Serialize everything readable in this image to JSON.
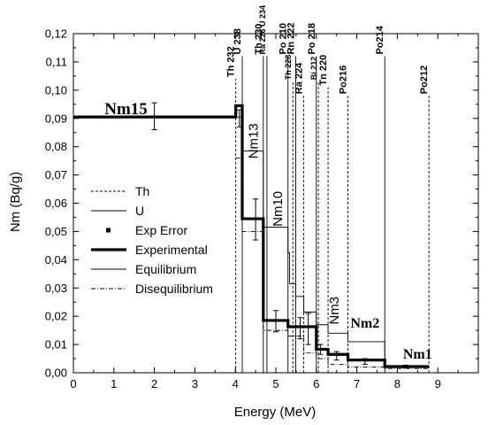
{
  "chart_data": {
    "type": "line",
    "xlabel": "Energy (MeV)",
    "ylabel": "Nm (Bq/g)",
    "xlim": [
      0,
      10
    ],
    "ylim": [
      0,
      0.12
    ],
    "x_ticks": [
      0,
      1,
      2,
      3,
      4,
      5,
      6,
      7,
      8,
      9
    ],
    "y_ticks": [
      0.0,
      0.01,
      0.02,
      0.03,
      0.04,
      0.05,
      0.06,
      0.07,
      0.08,
      0.09,
      0.1,
      0.11,
      0.12
    ],
    "y_tick_labels": [
      "0,00",
      "0,01",
      "0,02",
      "0,03",
      "0,04",
      "0,05",
      "0,06",
      "0,07",
      "0,08",
      "0,09",
      "0,10",
      "0,11",
      "0,12"
    ],
    "legend": [
      {
        "label": "Th",
        "style": "dashed"
      },
      {
        "label": "U",
        "style": "solid-thin"
      },
      {
        "label": "Exp Error",
        "style": "marker"
      },
      {
        "label": "Experimental",
        "style": "solid-thick"
      },
      {
        "label": "Equilibrium",
        "style": "solid-thin"
      },
      {
        "label": "Disequilibrium",
        "style": "dash-dot"
      }
    ],
    "series": [
      {
        "name": "Experimental",
        "step_x": [
          0,
          4.01,
          4.01,
          4.17,
          4.17,
          4.69,
          4.69,
          5.3,
          5.3,
          6.0,
          6.0,
          6.29,
          6.29,
          6.78,
          6.78,
          7.69,
          7.69,
          8.78
        ],
        "step_y": [
          0.0905,
          0.0905,
          0.0945,
          0.0945,
          0.0545,
          0.0545,
          0.0185,
          0.0185,
          0.0163,
          0.0163,
          0.0083,
          0.0083,
          0.0065,
          0.0065,
          0.0045,
          0.0045,
          0.0022,
          0.0022
        ]
      },
      {
        "name": "Equilibrium",
        "step_x": [
          4.01,
          4.17,
          4.17,
          4.69,
          4.69,
          5.3,
          5.3,
          5.34,
          5.34,
          5.49,
          5.49,
          5.69,
          5.69,
          6.0,
          6.0,
          6.29,
          6.29,
          6.78,
          6.78,
          7.69,
          7.69,
          8.78
        ],
        "step_y": [
          0.0905,
          0.0905,
          0.0785,
          0.0785,
          0.0515,
          0.0515,
          0.0425,
          0.0425,
          0.0315,
          0.0315,
          0.027,
          0.027,
          0.0215,
          0.0215,
          0.017,
          0.017,
          0.014,
          0.014,
          0.011,
          0.011,
          0.0022,
          0.0022
        ]
      },
      {
        "name": "Disequilibrium",
        "step_x": [
          4.01,
          4.17,
          4.17,
          4.69,
          4.69,
          5.3,
          5.3,
          5.69,
          5.69,
          6.0,
          6.0,
          6.29,
          6.29,
          6.78,
          6.78,
          7.69,
          7.69,
          8.78
        ],
        "step_y": [
          0.076,
          0.076,
          0.05,
          0.05,
          0.015,
          0.015,
          0.013,
          0.013,
          0.007,
          0.007,
          0.005,
          0.005,
          0.003,
          0.003,
          0.002,
          0.002,
          0.0015,
          0.0015
        ]
      }
    ],
    "error_bars": [
      {
        "x": 2.0,
        "y": 0.0905,
        "lo": 0.086,
        "hi": 0.0955
      },
      {
        "x": 4.1,
        "y": 0.09,
        "lo": 0.087,
        "hi": 0.093
      },
      {
        "x": 4.5,
        "y": 0.0535,
        "lo": 0.047,
        "hi": 0.0615
      },
      {
        "x": 5.0,
        "y": 0.0175,
        "lo": 0.0145,
        "hi": 0.022
      },
      {
        "x": 5.6,
        "y": 0.016,
        "lo": 0.012,
        "hi": 0.0195
      },
      {
        "x": 5.8,
        "y": 0.015,
        "lo": 0.01,
        "hi": 0.021
      },
      {
        "x": 6.1,
        "y": 0.008,
        "lo": 0.0065,
        "hi": 0.01
      },
      {
        "x": 6.5,
        "y": 0.006,
        "lo": 0.0045,
        "hi": 0.0075
      },
      {
        "x": 7.2,
        "y": 0.004,
        "lo": 0.003,
        "hi": 0.005
      },
      {
        "x": 8.2,
        "y": 0.0022,
        "lo": 0.0017,
        "hi": 0.0027
      }
    ],
    "isotope_lines": [
      {
        "label": "Th 232",
        "x": 4.01,
        "y_top": 0.104,
        "style": "dashed",
        "small": false
      },
      {
        "label": "U 238",
        "x": 4.17,
        "y_top": 0.112,
        "style": "solid",
        "small": false
      },
      {
        "label": "Th 230",
        "x": 4.69,
        "y_top": 0.112,
        "style": "solid",
        "small": false
      },
      {
        "label": "Ra 226 U 234",
        "x": 4.78,
        "y_top": 0.112,
        "style": "solid",
        "small": true
      },
      {
        "label": "Po 210",
        "x": 5.3,
        "y_top": 0.112,
        "style": "solid",
        "small": false
      },
      {
        "label": "Th 228",
        "x": 5.42,
        "y_top": 0.103,
        "style": "dashed",
        "small": true
      },
      {
        "label": "Rn 222",
        "x": 5.49,
        "y_top": 0.112,
        "style": "solid",
        "small": false
      },
      {
        "label": "Ra 224",
        "x": 5.69,
        "y_top": 0.098,
        "style": "dashed",
        "small": false
      },
      {
        "label": "Bi 212",
        "x": 6.05,
        "y_top": 0.103,
        "style": "dashed",
        "small": true
      },
      {
        "label": "Po 218",
        "x": 6.0,
        "y_top": 0.112,
        "style": "solid",
        "small": false
      },
      {
        "label": "Tn 220",
        "x": 6.29,
        "y_top": 0.101,
        "style": "dashed",
        "small": false
      },
      {
        "label": "Po216",
        "x": 6.78,
        "y_top": 0.098,
        "style": "dashed",
        "small": false
      },
      {
        "label": "Po214",
        "x": 7.69,
        "y_top": 0.112,
        "style": "solid",
        "small": false
      },
      {
        "label": "Po212",
        "x": 8.78,
        "y_top": 0.098,
        "style": "dashed",
        "small": false
      }
    ],
    "annotations": [
      {
        "text": "Nm15",
        "x": 1.3,
        "y": 0.0915,
        "style": "big"
      },
      {
        "text": "Nm13",
        "x": 4.55,
        "y": 0.082,
        "style": "plain-vertical"
      },
      {
        "text": "Nm10",
        "x": 5.15,
        "y": 0.058,
        "style": "plain-vertical"
      },
      {
        "text": "Nm3",
        "x": 6.55,
        "y": 0.022,
        "style": "plain-vertical"
      },
      {
        "text": "Nm2",
        "x": 7.2,
        "y": 0.016,
        "style": "mid"
      },
      {
        "text": "Nm1",
        "x": 8.5,
        "y": 0.005,
        "style": "mid"
      }
    ]
  }
}
